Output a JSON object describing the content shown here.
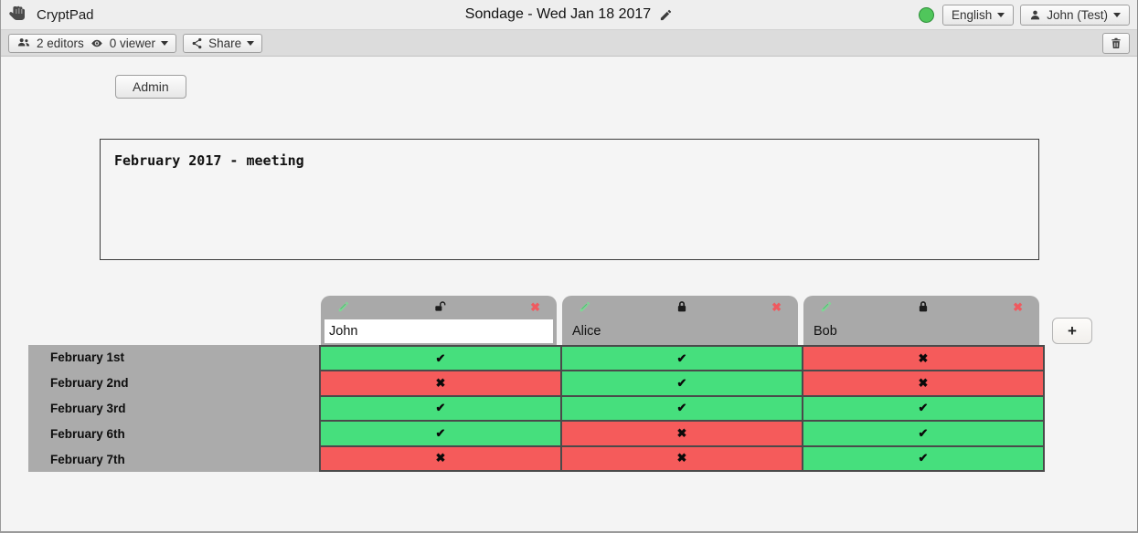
{
  "topbar": {
    "app_name": "CryptPad",
    "title": "Sondage - Wed Jan 18 2017",
    "language_label": "English",
    "user_label": "John (Test)"
  },
  "toolbar": {
    "editors_label": "2 editors",
    "viewers_label": "0 viewer",
    "share_label": "Share"
  },
  "admin_button_label": "Admin",
  "description_text": "February 2017 - meeting",
  "poll": {
    "columns": [
      {
        "name": "John",
        "locked": false
      },
      {
        "name": "Alice",
        "locked": true
      },
      {
        "name": "Bob",
        "locked": true
      }
    ],
    "rows": [
      "February 1st",
      "February 2nd",
      "February 3rd",
      "February 6th",
      "February 7th"
    ],
    "votes": [
      [
        "yes",
        "yes",
        "no"
      ],
      [
        "no",
        "yes",
        "no"
      ],
      [
        "yes",
        "yes",
        "yes"
      ],
      [
        "yes",
        "no",
        "yes"
      ],
      [
        "no",
        "no",
        "yes"
      ]
    ],
    "yes_mark": "✔",
    "no_mark": "✖",
    "remove_column_mark": "✖",
    "add_column_label": "+"
  },
  "icons": {
    "logo": "cryptpad-fist-icon",
    "editors": "users-icon",
    "viewers": "eye-icon",
    "share": "share-icon",
    "dropdown": "caret-down-icon",
    "edit_title": "pencil-icon",
    "status": "connection-status-dot",
    "user": "person-icon",
    "trash": "trash-icon",
    "column_edit": "pencil-icon-green",
    "column_locked": "lock-icon",
    "column_unlocked": "unlock-icon"
  },
  "colors": {
    "yes_bg": "#46df7d",
    "no_bg": "#f55b5b",
    "header_gray": "#a9a9a9",
    "label_gray": "#ababab",
    "status_green": "#50c65b",
    "remove_x_red": "#ef5a5f"
  }
}
